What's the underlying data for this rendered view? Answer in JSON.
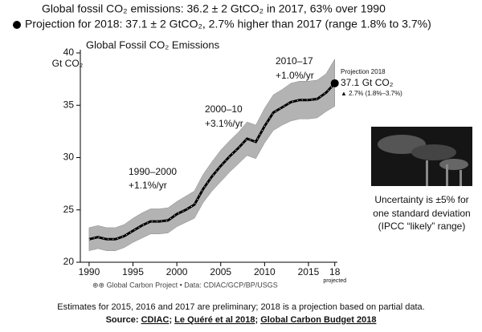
{
  "slide": {
    "headline": "Global fossil CO₂ emissions: 36.2 ± 2 GtCO₂ in 2017, 63% over 1990",
    "bullet": "Projection for 2018: 37.1 ± 2 GtCO₂, 2.7% higher than 2017 (range 1.8% to 3.7%)",
    "uncertainty_note": [
      "Uncertainty is ±5% for",
      "one standard deviation",
      "(IPCC “likely” range)"
    ],
    "footnote": "Estimates for 2015, 2016 and 2017 are preliminary; 2018 is a projection based on partial data.",
    "source": {
      "label": "Source:",
      "links": [
        "CDIAC",
        "Le Quéré et al 2018",
        "Global Carbon Budget 2018"
      ],
      "separator": ";"
    }
  },
  "chart_data": {
    "type": "line",
    "title": "Global Fossil CO₂ Emissions",
    "y_label": "Gt CO₂",
    "credit": "⊕⊕ Global Carbon Project  •  Data: CDIAC/GCP/BP/USGS",
    "x": [
      1990,
      1991,
      1992,
      1993,
      1994,
      1995,
      1996,
      1997,
      1998,
      1999,
      2000,
      2001,
      2002,
      2003,
      2004,
      2005,
      2006,
      2007,
      2008,
      2009,
      2010,
      2011,
      2012,
      2013,
      2014,
      2015,
      2016,
      2017,
      2018
    ],
    "series": [
      {
        "name": "Global Fossil CO₂ Emissions",
        "color": "#000000",
        "values": [
          22.2,
          22.4,
          22.2,
          22.2,
          22.5,
          23.0,
          23.5,
          23.9,
          23.9,
          24.0,
          24.6,
          25.0,
          25.5,
          27.0,
          28.2,
          29.2,
          30.1,
          30.9,
          31.8,
          31.5,
          33.0,
          34.3,
          34.8,
          35.3,
          35.5,
          35.5,
          35.6,
          36.2,
          37.1
        ]
      }
    ],
    "band": {
      "color": "#b3b3b3",
      "lower": [
        21.1,
        21.3,
        21.1,
        21.1,
        21.4,
        21.9,
        22.3,
        22.7,
        22.7,
        22.8,
        23.4,
        23.8,
        24.2,
        25.7,
        26.8,
        27.7,
        28.6,
        29.4,
        30.2,
        29.9,
        31.4,
        32.6,
        33.1,
        33.5,
        33.7,
        33.7,
        33.8,
        34.4,
        34.9
      ],
      "upper": [
        23.3,
        23.5,
        23.3,
        23.3,
        23.6,
        24.2,
        24.7,
        25.1,
        25.1,
        25.2,
        25.8,
        26.3,
        26.8,
        28.4,
        29.6,
        30.7,
        31.6,
        32.4,
        33.4,
        33.1,
        34.7,
        36.0,
        36.5,
        37.1,
        37.3,
        37.3,
        37.4,
        38.0,
        39.4
      ]
    },
    "xlim": [
      1989,
      2018.3
    ],
    "xticks": [
      1990,
      1995,
      2000,
      2005,
      2010,
      2015,
      {
        "value": 2018,
        "label": "18"
      }
    ],
    "x_note": "projected",
    "ylim": [
      20,
      40
    ],
    "yticks": [
      20,
      25,
      30,
      35,
      40
    ],
    "annotations": [
      {
        "period": "1990–2000",
        "rate": "+1.1%/yr"
      },
      {
        "period": "2000–10",
        "rate": "+3.1%/yr"
      },
      {
        "period": "2010–17",
        "rate": "+1.0%/yr"
      }
    ],
    "projection": {
      "label": "Projection 2018",
      "value_text": "37.1 Gt CO₂",
      "change_text": "▲ 2.7% (1.8%–3.7%)"
    }
  }
}
